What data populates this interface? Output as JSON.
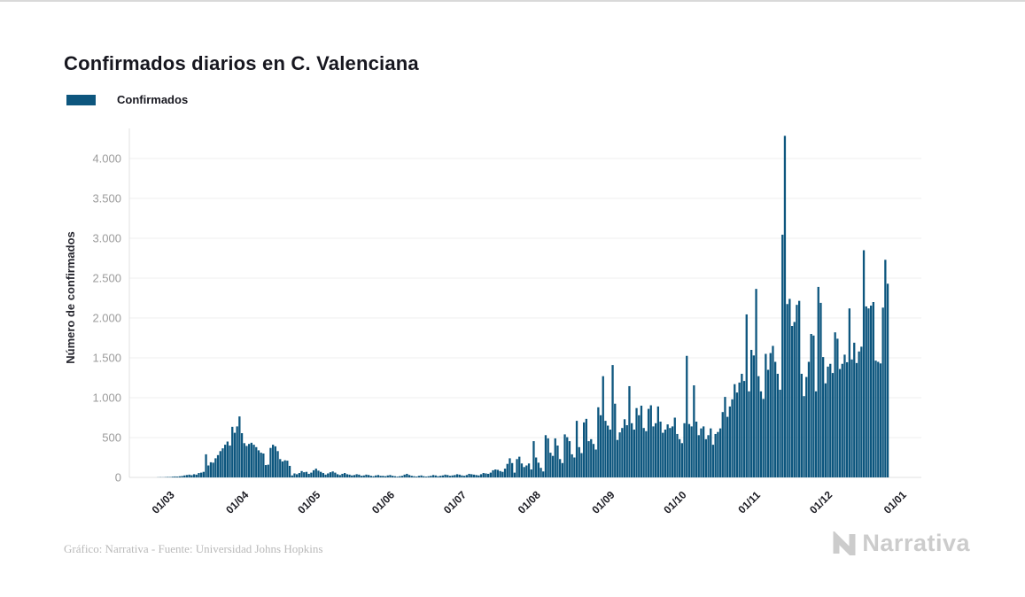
{
  "header": {
    "title": "Confirmados diarios en C. Valenciana",
    "title_color": "#17171f"
  },
  "legend": {
    "label": "Confirmados",
    "swatch_color": "#0d567e",
    "position": "top-left"
  },
  "chart_data": {
    "type": "bar",
    "title": "Confirmados diarios en C. Valenciana",
    "series_name": "Confirmados",
    "xlabel": "",
    "ylabel": "Número de confirmados",
    "ylim": [
      0,
      4300
    ],
    "grid": true,
    "legend_position": "top-left",
    "bar_color": "#0d567e",
    "grid_color": "#efefef",
    "axis_color": "#e0e0e0",
    "y_tick_color": "#9b9b9b",
    "x_tick_color": "#1b1b22",
    "ylabel_color": "#26262e",
    "y_ticks": [
      {
        "value": 0,
        "label": "0"
      },
      {
        "value": 500,
        "label": "500"
      },
      {
        "value": 1000,
        "label": "1.000"
      },
      {
        "value": 1500,
        "label": "1.500"
      },
      {
        "value": 2000,
        "label": "2.000"
      },
      {
        "value": 2500,
        "label": "2.500"
      },
      {
        "value": 3000,
        "label": "3.000"
      },
      {
        "value": 3500,
        "label": "3.500"
      },
      {
        "value": 4000,
        "label": "4.000"
      }
    ],
    "x_tick_indices": [
      4,
      35,
      65,
      96,
      126,
      157,
      188,
      218,
      249,
      279,
      310
    ],
    "x_tick_labels": [
      "01/03",
      "01/04",
      "01/05",
      "01/06",
      "01/07",
      "01/08",
      "01/09",
      "01/10",
      "01/11",
      "01/12",
      "01/01"
    ],
    "values": [
      0,
      0,
      2,
      3,
      2,
      4,
      6,
      5,
      9,
      12,
      10,
      14,
      18,
      25,
      30,
      35,
      28,
      40,
      35,
      55,
      60,
      70,
      290,
      150,
      190,
      185,
      240,
      280,
      330,
      365,
      410,
      450,
      400,
      635,
      560,
      640,
      765,
      555,
      430,
      395,
      420,
      435,
      410,
      380,
      340,
      310,
      300,
      155,
      160,
      370,
      410,
      390,
      330,
      230,
      200,
      215,
      210,
      145,
      25,
      50,
      40,
      55,
      80,
      65,
      70,
      45,
      60,
      90,
      110,
      85,
      70,
      55,
      35,
      50,
      65,
      75,
      60,
      40,
      30,
      45,
      55,
      40,
      35,
      25,
      30,
      40,
      35,
      20,
      25,
      35,
      30,
      20,
      15,
      25,
      30,
      20,
      20,
      15,
      25,
      30,
      20,
      15,
      10,
      15,
      20,
      35,
      45,
      30,
      20,
      15,
      10,
      20,
      25,
      15,
      10,
      15,
      20,
      30,
      25,
      15,
      20,
      25,
      35,
      30,
      20,
      25,
      30,
      40,
      35,
      25,
      20,
      30,
      45,
      40,
      35,
      30,
      25,
      40,
      55,
      50,
      45,
      60,
      90,
      100,
      95,
      80,
      70,
      110,
      170,
      240,
      180,
      60,
      230,
      260,
      175,
      130,
      150,
      175,
      100,
      455,
      250,
      185,
      120,
      75,
      530,
      490,
      310,
      270,
      490,
      400,
      230,
      180,
      540,
      505,
      455,
      290,
      250,
      710,
      380,
      305,
      690,
      735,
      455,
      480,
      420,
      350,
      880,
      780,
      1270,
      710,
      650,
      600,
      1410,
      925,
      470,
      565,
      620,
      730,
      655,
      1145,
      680,
      600,
      870,
      780,
      900,
      620,
      580,
      860,
      905,
      640,
      680,
      890,
      700,
      560,
      600,
      665,
      620,
      640,
      750,
      545,
      480,
      430,
      680,
      1525,
      670,
      640,
      1155,
      700,
      530,
      615,
      640,
      480,
      530,
      615,
      410,
      545,
      570,
      615,
      820,
      1010,
      760,
      890,
      980,
      1170,
      1065,
      1190,
      1300,
      1210,
      2045,
      1080,
      1600,
      1530,
      2365,
      1270,
      1080,
      985,
      1550,
      1350,
      1560,
      1650,
      1450,
      1300,
      1100,
      3045,
      4285,
      2175,
      2240,
      1900,
      1950,
      2165,
      2215,
      1300,
      1020,
      1260,
      1450,
      1800,
      1780,
      1080,
      2390,
      2190,
      1510,
      1180,
      1390,
      1425,
      1310,
      1820,
      1740,
      1360,
      1425,
      1540,
      1445,
      2120,
      1480,
      1690,
      1435,
      1580,
      1640,
      2850,
      2145,
      2120,
      2155,
      2200,
      1465,
      1450,
      1430,
      2130,
      2730,
      2430
    ]
  },
  "footer": {
    "credit": "Gráfico: Narrativa - Fuente: Universidad Johns Hopkins",
    "color": "#b9b9b9"
  },
  "logo": {
    "text": "Narrativa",
    "color": "#cccccc"
  }
}
